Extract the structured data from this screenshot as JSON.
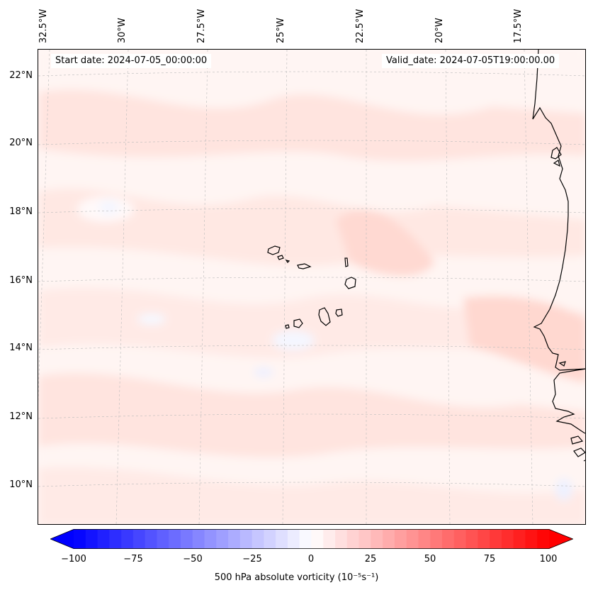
{
  "map": {
    "start_date": "Start date: 2024-07-05_00:00:00",
    "valid_date": "Valid_date: 2024-07-05T19:00:00.00",
    "lon_labels": [
      "32.5°W",
      "30°W",
      "27.5°W",
      "25°W",
      "22.5°W",
      "20°W",
      "17.5°W"
    ],
    "lat_labels": [
      "22°N",
      "20°N",
      "18°N",
      "16°N",
      "14°N",
      "12°N",
      "10°N"
    ],
    "features": [
      "cape-verde-islands",
      "west-africa-coastline"
    ]
  },
  "colorbar": {
    "ticks": [
      "−100",
      "−75",
      "−50",
      "−25",
      "0",
      "25",
      "50",
      "75",
      "100"
    ],
    "label": "500 hPa absolute vorticity (10⁻⁵s⁻¹)",
    "min": -100,
    "max": 100,
    "low_color": "#0000ff",
    "mid_color": "#ffffff",
    "high_color": "#ff0000"
  },
  "colors": {
    "land_outline": "#000000",
    "gridline": "#bbbbbb"
  }
}
